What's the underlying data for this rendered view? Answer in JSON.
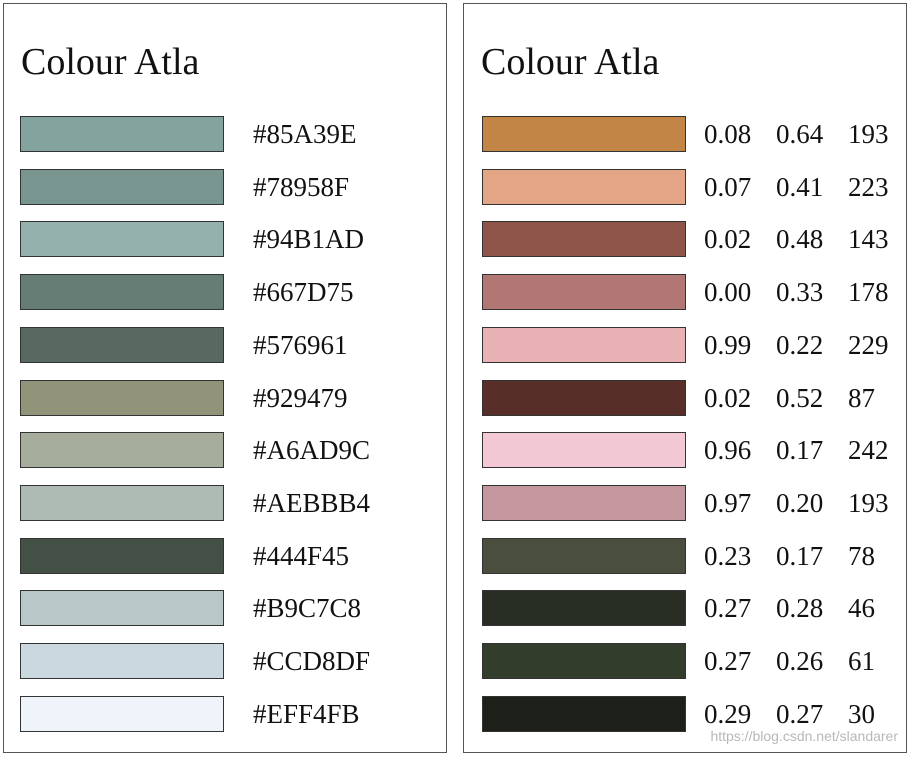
{
  "left": {
    "title": "Colour Atla",
    "swatches": [
      "#85A39E",
      "#78958F",
      "#94B1AD",
      "#667D75",
      "#576961",
      "#929479",
      "#A6AD9C",
      "#AEBBB4",
      "#444F45",
      "#B9C7C8",
      "#CCD8DF",
      "#EFF4FB"
    ]
  },
  "right": {
    "title": "Colour Atla",
    "swatches": [
      {
        "color": "#C28546",
        "values": [
          "0.08",
          "0.64",
          "193"
        ]
      },
      {
        "color": "#E3A585",
        "values": [
          "0.07",
          "0.41",
          "223"
        ]
      },
      {
        "color": "#8E544A",
        "values": [
          "0.02",
          "0.48",
          "143"
        ]
      },
      {
        "color": "#B27674",
        "values": [
          "0.00",
          "0.33",
          "178"
        ]
      },
      {
        "color": "#E8B2B4",
        "values": [
          "0.99",
          "0.22",
          "229"
        ]
      },
      {
        "color": "#582E29",
        "values": [
          "0.02",
          "0.52",
          "87"
        ]
      },
      {
        "color": "#F2C8D4",
        "values": [
          "0.96",
          "0.17",
          "242"
        ]
      },
      {
        "color": "#C4969E",
        "values": [
          "0.97",
          "0.20",
          "193"
        ]
      },
      {
        "color": "#4A4E3F",
        "values": [
          "0.23",
          "0.17",
          "78"
        ]
      },
      {
        "color": "#282E23",
        "values": [
          "0.27",
          "0.28",
          "46"
        ]
      },
      {
        "color": "#323D2C",
        "values": [
          "0.27",
          "0.26",
          "61"
        ]
      },
      {
        "color": "#1C2018",
        "values": [
          "0.29",
          "0.27",
          "30"
        ]
      }
    ]
  },
  "watermark": "https://blog.csdn.net/slandarer"
}
